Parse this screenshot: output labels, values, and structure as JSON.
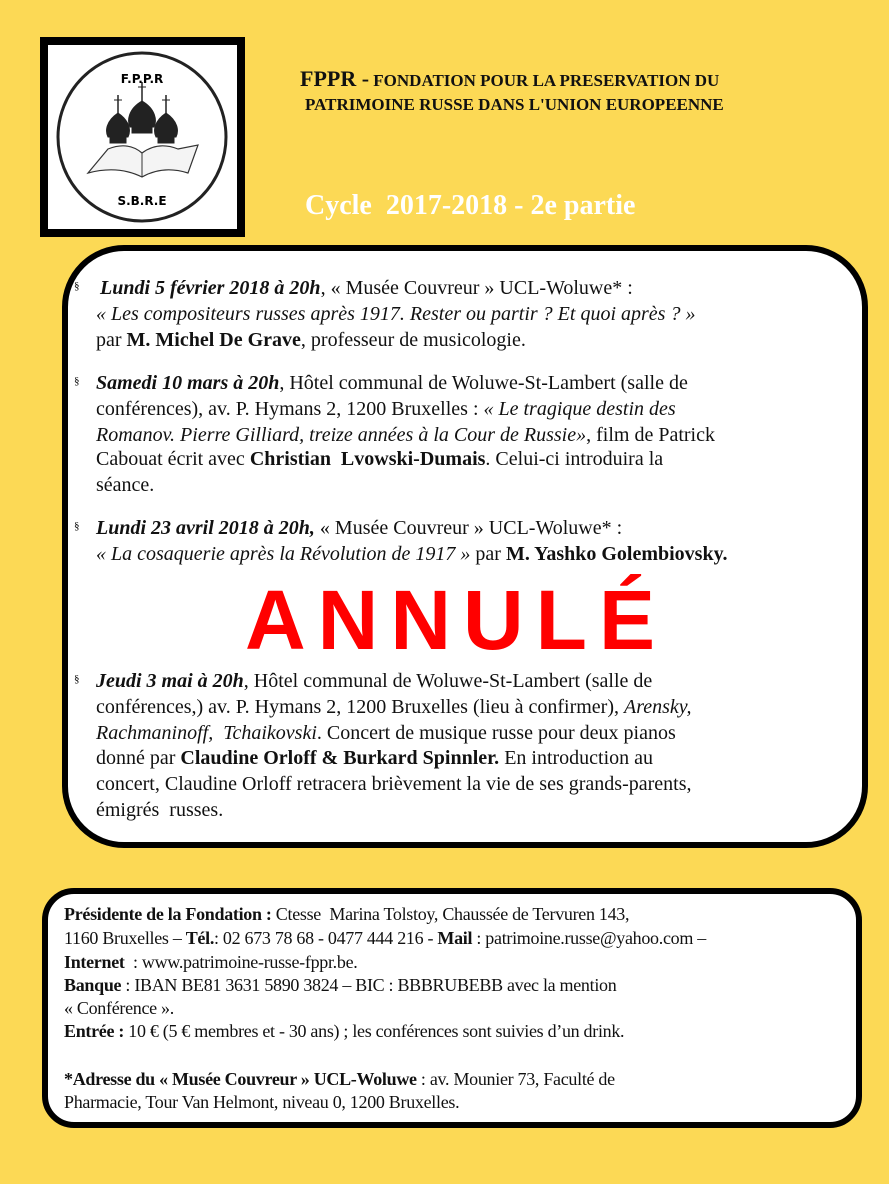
{
  "logo": {
    "top_text": "F.P.P.R",
    "bottom_text": "S.B.R.E"
  },
  "header": {
    "acronym": "FPPR -",
    "title_line1": " FONDATION POUR LA PRESERVATION DU",
    "title_line2": "PATRIMOINE RUSSE DANS  L'UNION EUROPEENNE",
    "cycle": "Cycle  2017-2018 - 2e partie"
  },
  "bullet_symbol": "§",
  "events": [
    {
      "lines": [
        [
          {
            "s": "bi",
            "t": "Lundi 5 février 2018 à 20h"
          },
          {
            "s": "",
            "t": ", « Musée Couvreur » UCL-Woluwe* :"
          }
        ],
        [
          {
            "s": "i",
            "t": "« Les compositeurs russes après 1917. Rester ou partir ? Et quoi après ? »"
          }
        ],
        [
          {
            "s": "",
            "t": "par "
          },
          {
            "s": "b",
            "t": "M. Michel De Grave"
          },
          {
            "s": "",
            "t": ", professeur de musicologie."
          }
        ]
      ]
    },
    {
      "lines": [
        [
          {
            "s": "bi",
            "t": "Samedi 10 mars à 20h"
          },
          {
            "s": "",
            "t": ", Hôtel communal de Woluwe-St-Lambert (salle de"
          }
        ],
        [
          {
            "s": "",
            "t": "conférences), av. P. Hymans 2, 1200 Bruxelles : "
          },
          {
            "s": "i",
            "t": "« Le tragique destin des"
          }
        ],
        [
          {
            "s": "i",
            "t": "Romanov. Pierre Gilliard, treize années à la Cour de Russie»"
          },
          {
            "s": "",
            "t": ", film de Patrick"
          }
        ],
        [
          {
            "s": "",
            "t": "Cabouat écrit avec "
          },
          {
            "s": "b",
            "t": "Christian  Lvowski-Dumais"
          },
          {
            "s": "",
            "t": ". Celui-ci introduira la"
          }
        ],
        [
          {
            "s": "",
            "t": "séance."
          }
        ]
      ]
    },
    {
      "lines": [
        [
          {
            "s": "bi",
            "t": "Lundi 23 avril 2018 à 20h,"
          },
          {
            "s": "",
            "t": " « Musée Couvreur » UCL-Woluwe* :"
          }
        ],
        [
          {
            "s": "i",
            "t": "« La cosaquerie après la Révolution de 1917 »"
          },
          {
            "s": "",
            "t": " par "
          },
          {
            "s": "b",
            "t": "M. Yashko Golembiovsky."
          }
        ]
      ]
    },
    {
      "lines": [
        [
          {
            "s": "bi",
            "t": "Jeudi 3 mai à 20h"
          },
          {
            "s": "",
            "t": ", Hôtel communal de Woluwe-St-Lambert (salle de"
          }
        ],
        [
          {
            "s": "",
            "t": "conférences,) av. P. Hymans 2, 1200 Bruxelles (lieu à confirmer), "
          },
          {
            "s": "i",
            "t": "Arensky,"
          }
        ],
        [
          {
            "s": "i",
            "t": "Rachmaninoff,  Tchaikovski"
          },
          {
            "s": "",
            "t": ". Concert de musique russe pour deux pianos"
          }
        ],
        [
          {
            "s": "",
            "t": "donné par "
          },
          {
            "s": "b",
            "t": "Claudine Orloff & Burkard Spinnler."
          },
          {
            "s": "",
            "t": " En introduction au"
          }
        ],
        [
          {
            "s": "",
            "t": "concert, Claudine Orloff retracera brièvement la vie de ses grands-parents,"
          }
        ],
        [
          {
            "s": "",
            "t": "émigrés  russes."
          }
        ]
      ]
    }
  ],
  "cancelled_stamp": "ANNULÉ",
  "cancelled_color": "#ff0000",
  "info": {
    "lines": [
      [
        {
          "s": "b",
          "t": "Présidente de la Fondation : "
        },
        {
          "s": "",
          "t": "Ctesse  Marina Tolstoy, Chaussée de Tervuren 143,"
        }
      ],
      [
        {
          "s": "",
          "t": "1160 Bruxelles – "
        },
        {
          "s": "b",
          "t": "Tél."
        },
        {
          "s": "",
          "t": ": 02 673 78 68 - 0477 444 216 - "
        },
        {
          "s": "b",
          "t": "Mail"
        },
        {
          "s": "",
          "t": " : patrimoine.russe@yahoo.com –"
        }
      ],
      [
        {
          "s": "b",
          "t": "Internet"
        },
        {
          "s": "",
          "t": "  : www.patrimoine-russe-fppr.be."
        }
      ],
      [
        {
          "s": "b",
          "t": "Banque"
        },
        {
          "s": "",
          "t": " : IBAN BE81 3631 5890 3824 – BIC : BBBRUBEBB avec la mention"
        }
      ],
      [
        {
          "s": "",
          "t": "« Conférence »."
        }
      ],
      [
        {
          "s": "b",
          "t": "Entrée :"
        },
        {
          "s": "",
          "t": " 10 € (5 € membres et - 30 ans) ; les conférences sont suivies d’un drink."
        }
      ],
      [
        {
          "s": "b",
          "t": "*Adresse du « Musée Couvreur » UCL-Woluwe"
        },
        {
          "s": "",
          "t": " : av. Mounier 73, Faculté de"
        }
      ],
      [
        {
          "s": "",
          "t": "Pharmacie, Tour Van Helmont, niveau 0, 1200 Bruxelles."
        }
      ]
    ]
  },
  "background_color": "#fcd955"
}
